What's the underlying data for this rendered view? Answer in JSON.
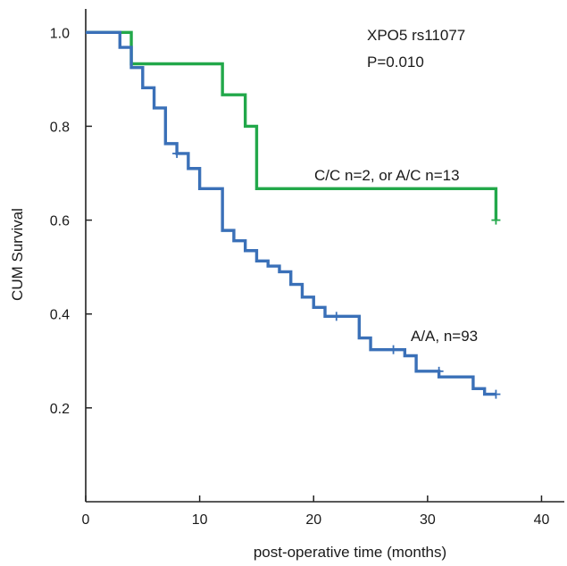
{
  "chart_data": {
    "type": "line",
    "subtype": "kaplan-meier",
    "title": "",
    "xlabel": "post-operative time (months)",
    "ylabel": "CUM Survival",
    "xlim": [
      0,
      42
    ],
    "ylim": [
      0.0,
      1.05
    ],
    "xticks": [
      0,
      10,
      20,
      30,
      40
    ],
    "yticks": [
      0.2,
      0.4,
      0.6,
      0.8,
      1.0
    ],
    "xtick_labels": [
      "0",
      "10",
      "20",
      "30",
      "40"
    ],
    "ytick_labels": [
      "0.2",
      "0.4",
      "0.6",
      "0.8",
      "1.0"
    ],
    "grid": false,
    "annotations": {
      "gene": "XPO5 rs11077",
      "pvalue": "P=0.010"
    },
    "series": [
      {
        "name": "C/C n=2, or A/C n=13",
        "color": "#22a84a",
        "steps": [
          [
            0,
            1.0
          ],
          [
            4,
            0.933
          ],
          [
            12,
            0.867
          ],
          [
            14,
            0.8
          ],
          [
            15,
            0.667
          ],
          [
            36,
            0.6
          ]
        ],
        "end_x": 36,
        "censored": [
          [
            36,
            0.6
          ]
        ]
      },
      {
        "name": "A/A, n=93",
        "color": "#3a70b8",
        "steps": [
          [
            0,
            1.0
          ],
          [
            3,
            0.968
          ],
          [
            4,
            0.925
          ],
          [
            5,
            0.882
          ],
          [
            6,
            0.839
          ],
          [
            7,
            0.763
          ],
          [
            8,
            0.742
          ],
          [
            9,
            0.71
          ],
          [
            10,
            0.667
          ],
          [
            12,
            0.578
          ],
          [
            13,
            0.556
          ],
          [
            14,
            0.535
          ],
          [
            15,
            0.513
          ],
          [
            16,
            0.502
          ],
          [
            17,
            0.49
          ],
          [
            18,
            0.463
          ],
          [
            19,
            0.436
          ],
          [
            20,
            0.414
          ],
          [
            21,
            0.395
          ],
          [
            24,
            0.349
          ],
          [
            25,
            0.324
          ],
          [
            28,
            0.311
          ],
          [
            29,
            0.278
          ],
          [
            31,
            0.266
          ],
          [
            34,
            0.241
          ],
          [
            35,
            0.229
          ]
        ],
        "end_x": 36,
        "censored": [
          [
            8,
            0.742
          ],
          [
            22,
            0.395
          ],
          [
            27,
            0.324
          ],
          [
            31,
            0.278
          ],
          [
            36,
            0.229
          ]
        ]
      }
    ]
  }
}
